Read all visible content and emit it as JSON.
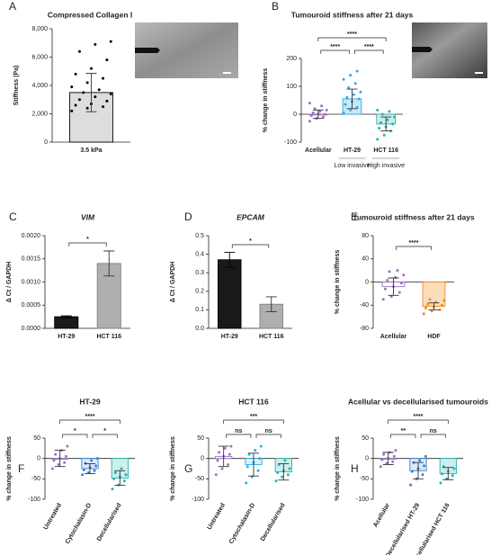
{
  "chart_data": [
    {
      "panel": "A",
      "type": "bar",
      "title": "Compressed Collagen I",
      "ylabel": "Stiffness (Pa)",
      "categories": [
        "3.5 kPa"
      ],
      "values": [
        3500
      ],
      "errors": [
        1350
      ],
      "colors": [
        "#000000"
      ],
      "fills": [
        "#d9d9d9"
      ],
      "points": [
        [
          2200,
          2400,
          2500,
          2600,
          2700,
          2900,
          3000,
          3200,
          3400,
          3500,
          3700,
          3900,
          4200,
          4500,
          4800,
          5200,
          5800,
          6400,
          6900,
          7100
        ]
      ],
      "ylim": [
        0,
        8000
      ],
      "yticks": [
        0,
        {
          "value": 2000,
          "label": "2,000"
        },
        {
          "value": 4000,
          "label": "4,000"
        },
        {
          "value": 6000,
          "label": "6,000"
        },
        {
          "value": 8000,
          "label": "8,000"
        }
      ]
    },
    {
      "panel": "B",
      "type": "bar",
      "title": "Tumouroid stiffness after 21 days",
      "ylabel": "% change in stiffness",
      "categories": [
        "Acellular",
        "HT-29",
        "HCT 116"
      ],
      "x_sublabels": [
        null,
        "Low invasive",
        "High invasive"
      ],
      "values": [
        0,
        55,
        -35
      ],
      "errors": [
        15,
        35,
        25
      ],
      "colors": [
        "#9b72c0",
        "#29aee3",
        "#26b5b0"
      ],
      "fills": [
        "#ffffff",
        "#bfe6f6",
        "#c6ecea"
      ],
      "points": [
        [
          -25,
          -15,
          -10,
          -5,
          0,
          0,
          5,
          10,
          15,
          20,
          30,
          40
        ],
        [
          5,
          15,
          25,
          35,
          45,
          55,
          60,
          70,
          80,
          95,
          110,
          125,
          140,
          155
        ],
        [
          -90,
          -75,
          -60,
          -50,
          -45,
          -35,
          -30,
          -20,
          -10,
          0,
          10,
          15
        ]
      ],
      "comparisons": [
        {
          "label": "****",
          "between": [
            "Acellular",
            "HT-29"
          ]
        },
        {
          "label": "****",
          "between": [
            "HT-29",
            "HCT 116"
          ]
        },
        {
          "label": "****",
          "between": [
            "Acellular",
            "HCT 116"
          ]
        }
      ],
      "ylim": [
        -100,
        200
      ],
      "yticks": [
        -100,
        0,
        100,
        200
      ]
    },
    {
      "panel": "C",
      "type": "bar",
      "title": "VIM",
      "title_style": "italic",
      "ylabel": "Δ Ct / GAPDH",
      "categories": [
        "HT-29",
        "HCT 116"
      ],
      "values": [
        0.00025,
        0.0014
      ],
      "errors": [
        2e-05,
        0.00027
      ],
      "colors": [
        "#000000",
        "#808080"
      ],
      "fills": [
        "#000000",
        "#a6a6a8"
      ],
      "comparisons": [
        {
          "label": "*",
          "between": [
            "HT-29",
            "HCT 116"
          ]
        }
      ],
      "ylim": [
        0,
        0.002
      ],
      "yticks": [
        {
          "value": 0,
          "label": "0.0000"
        },
        {
          "value": 0.0005,
          "label": "0.0005"
        },
        {
          "value": 0.001,
          "label": "0.0010"
        },
        {
          "value": 0.0015,
          "label": "0.0015"
        },
        {
          "value": 0.002,
          "label": "0.0020"
        }
      ]
    },
    {
      "panel": "D",
      "type": "bar",
      "title": "EPCAM",
      "title_style": "italic",
      "ylabel": "Δ Ct / GAPDH",
      "categories": [
        "HT-29",
        "HCT 116"
      ],
      "values": [
        0.37,
        0.13
      ],
      "errors": [
        0.04,
        0.04
      ],
      "colors": [
        "#000000",
        "#808080"
      ],
      "fills": [
        "#000000",
        "#a6a6a8"
      ],
      "comparisons": [
        {
          "label": "*",
          "between": [
            "HT-29",
            "HCT 116"
          ]
        }
      ],
      "ylim": [
        0,
        0.5
      ],
      "yticks": [
        {
          "value": 0,
          "label": "0.0"
        },
        0.1,
        0.2,
        0.3,
        0.4,
        0.5
      ]
    },
    {
      "panel": "E",
      "type": "bar",
      "title": "Tumouroid stiffness after 21 days",
      "ylabel": "% change in stiffness",
      "categories": [
        "Acellular",
        "HDF"
      ],
      "values": [
        -8,
        -42
      ],
      "errors": [
        15,
        6
      ],
      "colors": [
        "#9b72c0",
        "#f08a24"
      ],
      "fills": [
        "#ffffff",
        "#fbd9b5"
      ],
      "points": [
        [
          -30,
          -25,
          -18,
          -12,
          -8,
          -2,
          3,
          8,
          12,
          18,
          20
        ],
        [
          -55,
          -50,
          -48,
          -45,
          -43,
          -40,
          -38,
          -35,
          -32,
          -30
        ]
      ],
      "comparisons": [
        {
          "label": "****",
          "between": [
            "Acellular",
            "HDF"
          ]
        }
      ],
      "ylim": [
        -80,
        80
      ],
      "yticks": [
        -80,
        -40,
        0,
        40,
        80
      ]
    },
    {
      "panel": "F",
      "type": "bar",
      "title": "HT-29",
      "ylabel": "% change in stiffness",
      "categories": [
        "Untreated",
        "Cytochalasin-D",
        "Decellularised"
      ],
      "values": [
        0,
        -25,
        -48
      ],
      "errors": [
        20,
        12,
        18
      ],
      "colors": [
        "#9b72c0",
        "#3a7fd0",
        "#26b5b0"
      ],
      "fills": [
        "#ffffff",
        "#d7e6f7",
        "#c6ecea"
      ],
      "points": [
        [
          -25,
          -15,
          -10,
          -5,
          0,
          5,
          10,
          20,
          30
        ],
        [
          -40,
          -35,
          -30,
          -28,
          -22,
          -18,
          -12,
          -5,
          0
        ],
        [
          -75,
          -65,
          -55,
          -50,
          -45,
          -40,
          -35,
          -25
        ]
      ],
      "comparisons": [
        {
          "label": "*",
          "between": [
            "Untreated",
            "Cytochalasin-D"
          ]
        },
        {
          "label": "*",
          "between": [
            "Cytochalasin-D",
            "Decellularised"
          ]
        },
        {
          "label": "****",
          "between": [
            "Untreated",
            "Decellularised"
          ]
        }
      ],
      "ylim": [
        -100,
        50
      ],
      "yticks": [
        -100,
        -50,
        0,
        50
      ]
    },
    {
      "panel": "G",
      "type": "bar",
      "title": "HCT 116",
      "ylabel": "% change in stiffness",
      "categories": [
        "Untreated",
        "Cytochalasin-D",
        "Decellularised"
      ],
      "values": [
        5,
        -15,
        -33
      ],
      "errors": [
        25,
        28,
        20
      ],
      "colors": [
        "#9b72c0",
        "#29aee3",
        "#26b5b0"
      ],
      "fills": [
        "#ffffff",
        "#d3eef9",
        "#c6ecea"
      ],
      "points": [
        [
          -40,
          -25,
          -15,
          -5,
          5,
          10,
          15,
          25,
          30
        ],
        [
          -60,
          -45,
          -30,
          -20,
          -10,
          0,
          10,
          20,
          30
        ],
        [
          -55,
          -45,
          -40,
          -35,
          -30,
          -25,
          -15,
          -5
        ]
      ],
      "comparisons": [
        {
          "label": "ns",
          "between": [
            "Untreated",
            "Cytochalasin-D"
          ]
        },
        {
          "label": "ns",
          "between": [
            "Cytochalasin-D",
            "Decellularised"
          ]
        },
        {
          "label": "***",
          "between": [
            "Untreated",
            "Decellularised"
          ]
        }
      ],
      "ylim": [
        -100,
        50
      ],
      "yticks": [
        -100,
        -50,
        0,
        50
      ]
    },
    {
      "panel": "H",
      "type": "bar",
      "title": "Acellular vs decellularised tumouroids",
      "ylabel": "% change in stiffness",
      "categories": [
        "Acellular",
        "Decellularised HT-29",
        "Decellularised HCT 116"
      ],
      "values": [
        0,
        -30,
        -37
      ],
      "errors": [
        15,
        20,
        15
      ],
      "colors": [
        "#9b72c0",
        "#3a7fd0",
        "#26b5b0"
      ],
      "fills": [
        "#ffffff",
        "#d7e6f7",
        "#c6ecea"
      ],
      "points": [
        [
          -20,
          -12,
          -8,
          -3,
          0,
          5,
          10,
          15,
          20
        ],
        [
          -65,
          -50,
          -40,
          -32,
          -25,
          -18,
          -10,
          -5,
          5
        ],
        [
          -60,
          -50,
          -42,
          -38,
          -32,
          -25,
          -20
        ]
      ],
      "comparisons": [
        {
          "label": "**",
          "between": [
            "Acellular",
            "Decellularised HT-29"
          ]
        },
        {
          "label": "ns",
          "between": [
            "Decellularised HT-29",
            "Decellularised HCT 116"
          ]
        },
        {
          "label": "****",
          "between": [
            "Acellular",
            "Decellularised HCT 116"
          ]
        }
      ],
      "ylim": [
        -100,
        50
      ],
      "yticks": [
        -100,
        -50,
        0,
        50
      ]
    }
  ]
}
